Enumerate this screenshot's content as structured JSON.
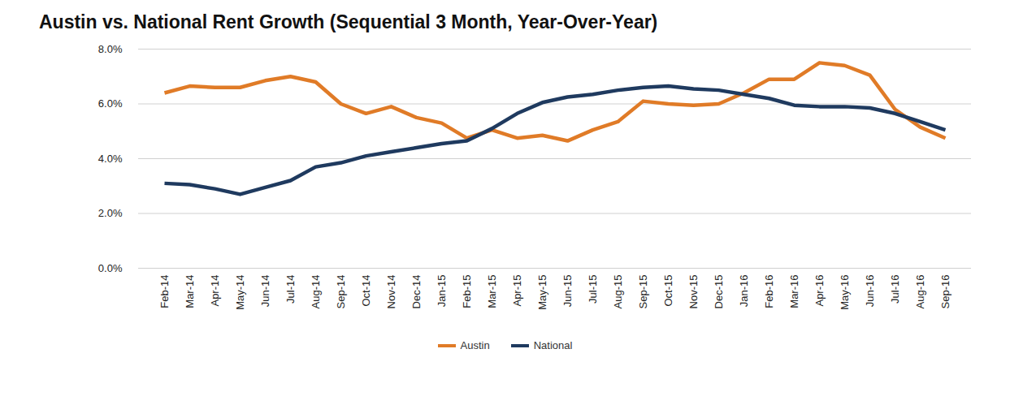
{
  "chart_data": {
    "type": "line",
    "title": "Austin vs. National Rent Growth (Sequential 3 Month, Year-Over-Year)",
    "categories": [
      "Feb-14",
      "Mar-14",
      "Apr-14",
      "May-14",
      "Jun-14",
      "Jul-14",
      "Aug-14",
      "Sep-14",
      "Oct-14",
      "Nov-14",
      "Dec-14",
      "Jan-15",
      "Feb-15",
      "Mar-15",
      "Apr-15",
      "May-15",
      "Jun-15",
      "Jul-15",
      "Aug-15",
      "Sep-15",
      "Oct-15",
      "Nov-15",
      "Dec-15",
      "Jan-16",
      "Feb-16",
      "Mar-16",
      "Apr-16",
      "May-16",
      "Jun-16",
      "Jul-16",
      "Aug-16",
      "Sep-16"
    ],
    "series": [
      {
        "name": "Austin",
        "color": "#e07b27",
        "values": [
          6.4,
          6.65,
          6.6,
          6.6,
          6.85,
          7.0,
          6.8,
          6.0,
          5.65,
          5.9,
          5.5,
          5.3,
          4.75,
          5.05,
          4.75,
          4.85,
          4.65,
          5.05,
          5.35,
          6.1,
          6.0,
          5.95,
          6.0,
          6.4,
          6.9,
          6.9,
          7.5,
          7.4,
          7.05,
          5.8,
          5.15,
          4.75
        ]
      },
      {
        "name": "National",
        "color": "#1f3a5f",
        "values": [
          3.1,
          3.05,
          2.9,
          2.7,
          2.95,
          3.2,
          3.7,
          3.85,
          4.1,
          4.25,
          4.4,
          4.55,
          4.65,
          5.1,
          5.65,
          6.05,
          6.25,
          6.35,
          6.5,
          6.6,
          6.65,
          6.55,
          6.5,
          6.35,
          6.2,
          5.95,
          5.9,
          5.9,
          5.85,
          5.65,
          5.35,
          5.05
        ]
      }
    ],
    "ylim": [
      0,
      8
    ],
    "yticks": [
      {
        "value": 0,
        "label": "0.0%"
      },
      {
        "value": 2,
        "label": "2.0%"
      },
      {
        "value": 4,
        "label": "4.0%"
      },
      {
        "value": 6,
        "label": "6.0%"
      },
      {
        "value": 8,
        "label": "8.0%"
      }
    ],
    "grid": true,
    "legend": "bottom"
  }
}
